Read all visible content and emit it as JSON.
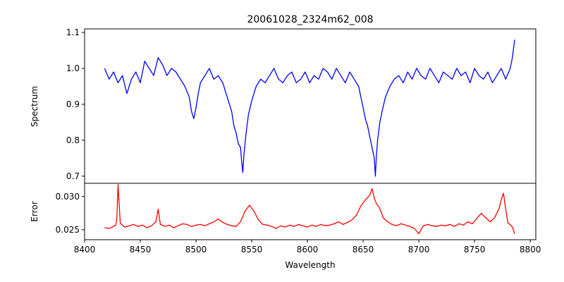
{
  "chart_data": {
    "type": "line",
    "title": "20061028_2324m62_008",
    "xlabel": "Wavelength",
    "xlim": [
      8400,
      8805
    ],
    "xticks": [
      8400,
      8450,
      8500,
      8550,
      8600,
      8650,
      8700,
      8750,
      8800
    ],
    "grid": false,
    "panels": [
      {
        "id": "spectrum",
        "ylabel": "Spectrum",
        "ylim": [
          0.68,
          1.11
        ],
        "yticks": [
          0.7,
          0.8,
          0.9,
          1.0,
          1.1
        ],
        "ytick_labels": [
          "0.7",
          "0.8",
          "0.9",
          "1.0",
          "1.1"
        ],
        "series": [
          {
            "color": "#0000ff",
            "x": [
              8418,
              8422,
              8426,
              8430,
              8434,
              8438,
              8442,
              8446,
              8450,
              8454,
              8458,
              8462,
              8466,
              8470,
              8474,
              8478,
              8482,
              8486,
              8490,
              8494,
              8496,
              8498,
              8500,
              8502,
              8504,
              8508,
              8512,
              8516,
              8520,
              8524,
              8528,
              8532,
              8534,
              8536,
              8538,
              8540,
              8541,
              8542,
              8543,
              8545,
              8547,
              8550,
              8554,
              8558,
              8562,
              8566,
              8570,
              8574,
              8578,
              8582,
              8586,
              8590,
              8594,
              8598,
              8602,
              8606,
              8610,
              8614,
              8618,
              8622,
              8626,
              8630,
              8634,
              8638,
              8642,
              8646,
              8648,
              8650,
              8652,
              8654,
              8656,
              8658,
              8660,
              8661,
              8662,
              8663,
              8665,
              8667,
              8670,
              8674,
              8678,
              8682,
              8686,
              8690,
              8694,
              8698,
              8702,
              8706,
              8710,
              8714,
              8718,
              8722,
              8726,
              8730,
              8734,
              8738,
              8742,
              8746,
              8750,
              8754,
              8758,
              8762,
              8766,
              8770,
              8774,
              8778,
              8782,
              8784,
              8786
            ],
            "y": [
              1.0,
              0.97,
              0.99,
              0.96,
              0.98,
              0.93,
              0.97,
              0.99,
              0.96,
              1.02,
              1.0,
              0.98,
              1.03,
              1.01,
              0.98,
              1.0,
              0.99,
              0.97,
              0.95,
              0.92,
              0.88,
              0.86,
              0.89,
              0.93,
              0.96,
              0.98,
              1.0,
              0.97,
              0.98,
              0.96,
              0.92,
              0.88,
              0.84,
              0.82,
              0.79,
              0.78,
              0.74,
              0.71,
              0.76,
              0.82,
              0.87,
              0.91,
              0.95,
              0.97,
              0.96,
              0.98,
              1.0,
              0.97,
              0.96,
              0.98,
              0.99,
              0.96,
              0.97,
              0.99,
              0.96,
              0.98,
              0.97,
              1.0,
              0.99,
              0.97,
              1.0,
              0.98,
              0.96,
              0.99,
              0.97,
              0.95,
              0.92,
              0.89,
              0.86,
              0.84,
              0.81,
              0.78,
              0.75,
              0.7,
              0.76,
              0.8,
              0.85,
              0.88,
              0.92,
              0.95,
              0.97,
              0.98,
              0.96,
              0.99,
              0.97,
              1.0,
              0.98,
              0.97,
              1.0,
              0.98,
              0.96,
              0.99,
              0.98,
              0.97,
              1.0,
              0.98,
              0.99,
              0.96,
              1.0,
              0.98,
              0.97,
              0.99,
              0.96,
              0.98,
              1.0,
              0.97,
              1.0,
              1.03,
              1.08
            ]
          }
        ]
      },
      {
        "id": "error",
        "ylabel": "Error",
        "ylim": [
          0.0235,
          0.032
        ],
        "yticks": [
          0.025,
          0.03
        ],
        "ytick_labels": [
          "0.025",
          "0.030"
        ],
        "series": [
          {
            "color": "#ff0000",
            "x": [
              8418,
              8422,
              8426,
              8428,
              8429,
              8430,
              8432,
              8436,
              8440,
              8444,
              8448,
              8452,
              8456,
              8460,
              8464,
              8466,
              8468,
              8472,
              8476,
              8480,
              8484,
              8488,
              8492,
              8496,
              8500,
              8504,
              8508,
              8512,
              8516,
              8520,
              8524,
              8528,
              8532,
              8536,
              8540,
              8544,
              8548,
              8552,
              8556,
              8560,
              8564,
              8568,
              8572,
              8576,
              8580,
              8584,
              8588,
              8592,
              8596,
              8600,
              8604,
              8608,
              8612,
              8616,
              8620,
              8624,
              8628,
              8632,
              8636,
              8640,
              8644,
              8648,
              8652,
              8656,
              8658,
              8660,
              8662,
              8664,
              8666,
              8668,
              8672,
              8676,
              8680,
              8684,
              8688,
              8692,
              8696,
              8700,
              8704,
              8708,
              8712,
              8716,
              8720,
              8724,
              8728,
              8732,
              8736,
              8740,
              8744,
              8748,
              8752,
              8756,
              8760,
              8764,
              8768,
              8772,
              8774,
              8776,
              8778,
              8780,
              8782,
              8784,
              8786
            ],
            "y": [
              0.0253,
              0.0252,
              0.0255,
              0.0257,
              0.0268,
              0.0318,
              0.026,
              0.0254,
              0.0256,
              0.0258,
              0.0255,
              0.0257,
              0.0253,
              0.0256,
              0.0262,
              0.0281,
              0.0258,
              0.0255,
              0.0257,
              0.0253,
              0.0256,
              0.0259,
              0.0258,
              0.0255,
              0.0257,
              0.0258,
              0.0256,
              0.0259,
              0.0262,
              0.0266,
              0.0261,
              0.0258,
              0.0256,
              0.0255,
              0.0262,
              0.0278,
              0.0287,
              0.0278,
              0.0265,
              0.0258,
              0.0257,
              0.0255,
              0.0252,
              0.0256,
              0.0254,
              0.0257,
              0.0255,
              0.0258,
              0.0256,
              0.0254,
              0.0257,
              0.0255,
              0.0258,
              0.0256,
              0.0257,
              0.0259,
              0.0262,
              0.0258,
              0.0261,
              0.0265,
              0.0272,
              0.0286,
              0.0295,
              0.0302,
              0.0312,
              0.0298,
              0.0289,
              0.0285,
              0.0278,
              0.0268,
              0.0262,
              0.0258,
              0.0256,
              0.0259,
              0.0257,
              0.0255,
              0.0252,
              0.0244,
              0.0256,
              0.0258,
              0.0256,
              0.0255,
              0.0257,
              0.0256,
              0.0258,
              0.0255,
              0.0259,
              0.0257,
              0.0262,
              0.0259,
              0.0267,
              0.0275,
              0.0268,
              0.0262,
              0.0268,
              0.0282,
              0.0295,
              0.0305,
              0.0281,
              0.026,
              0.0258,
              0.0254,
              0.0244
            ]
          }
        ]
      }
    ]
  }
}
